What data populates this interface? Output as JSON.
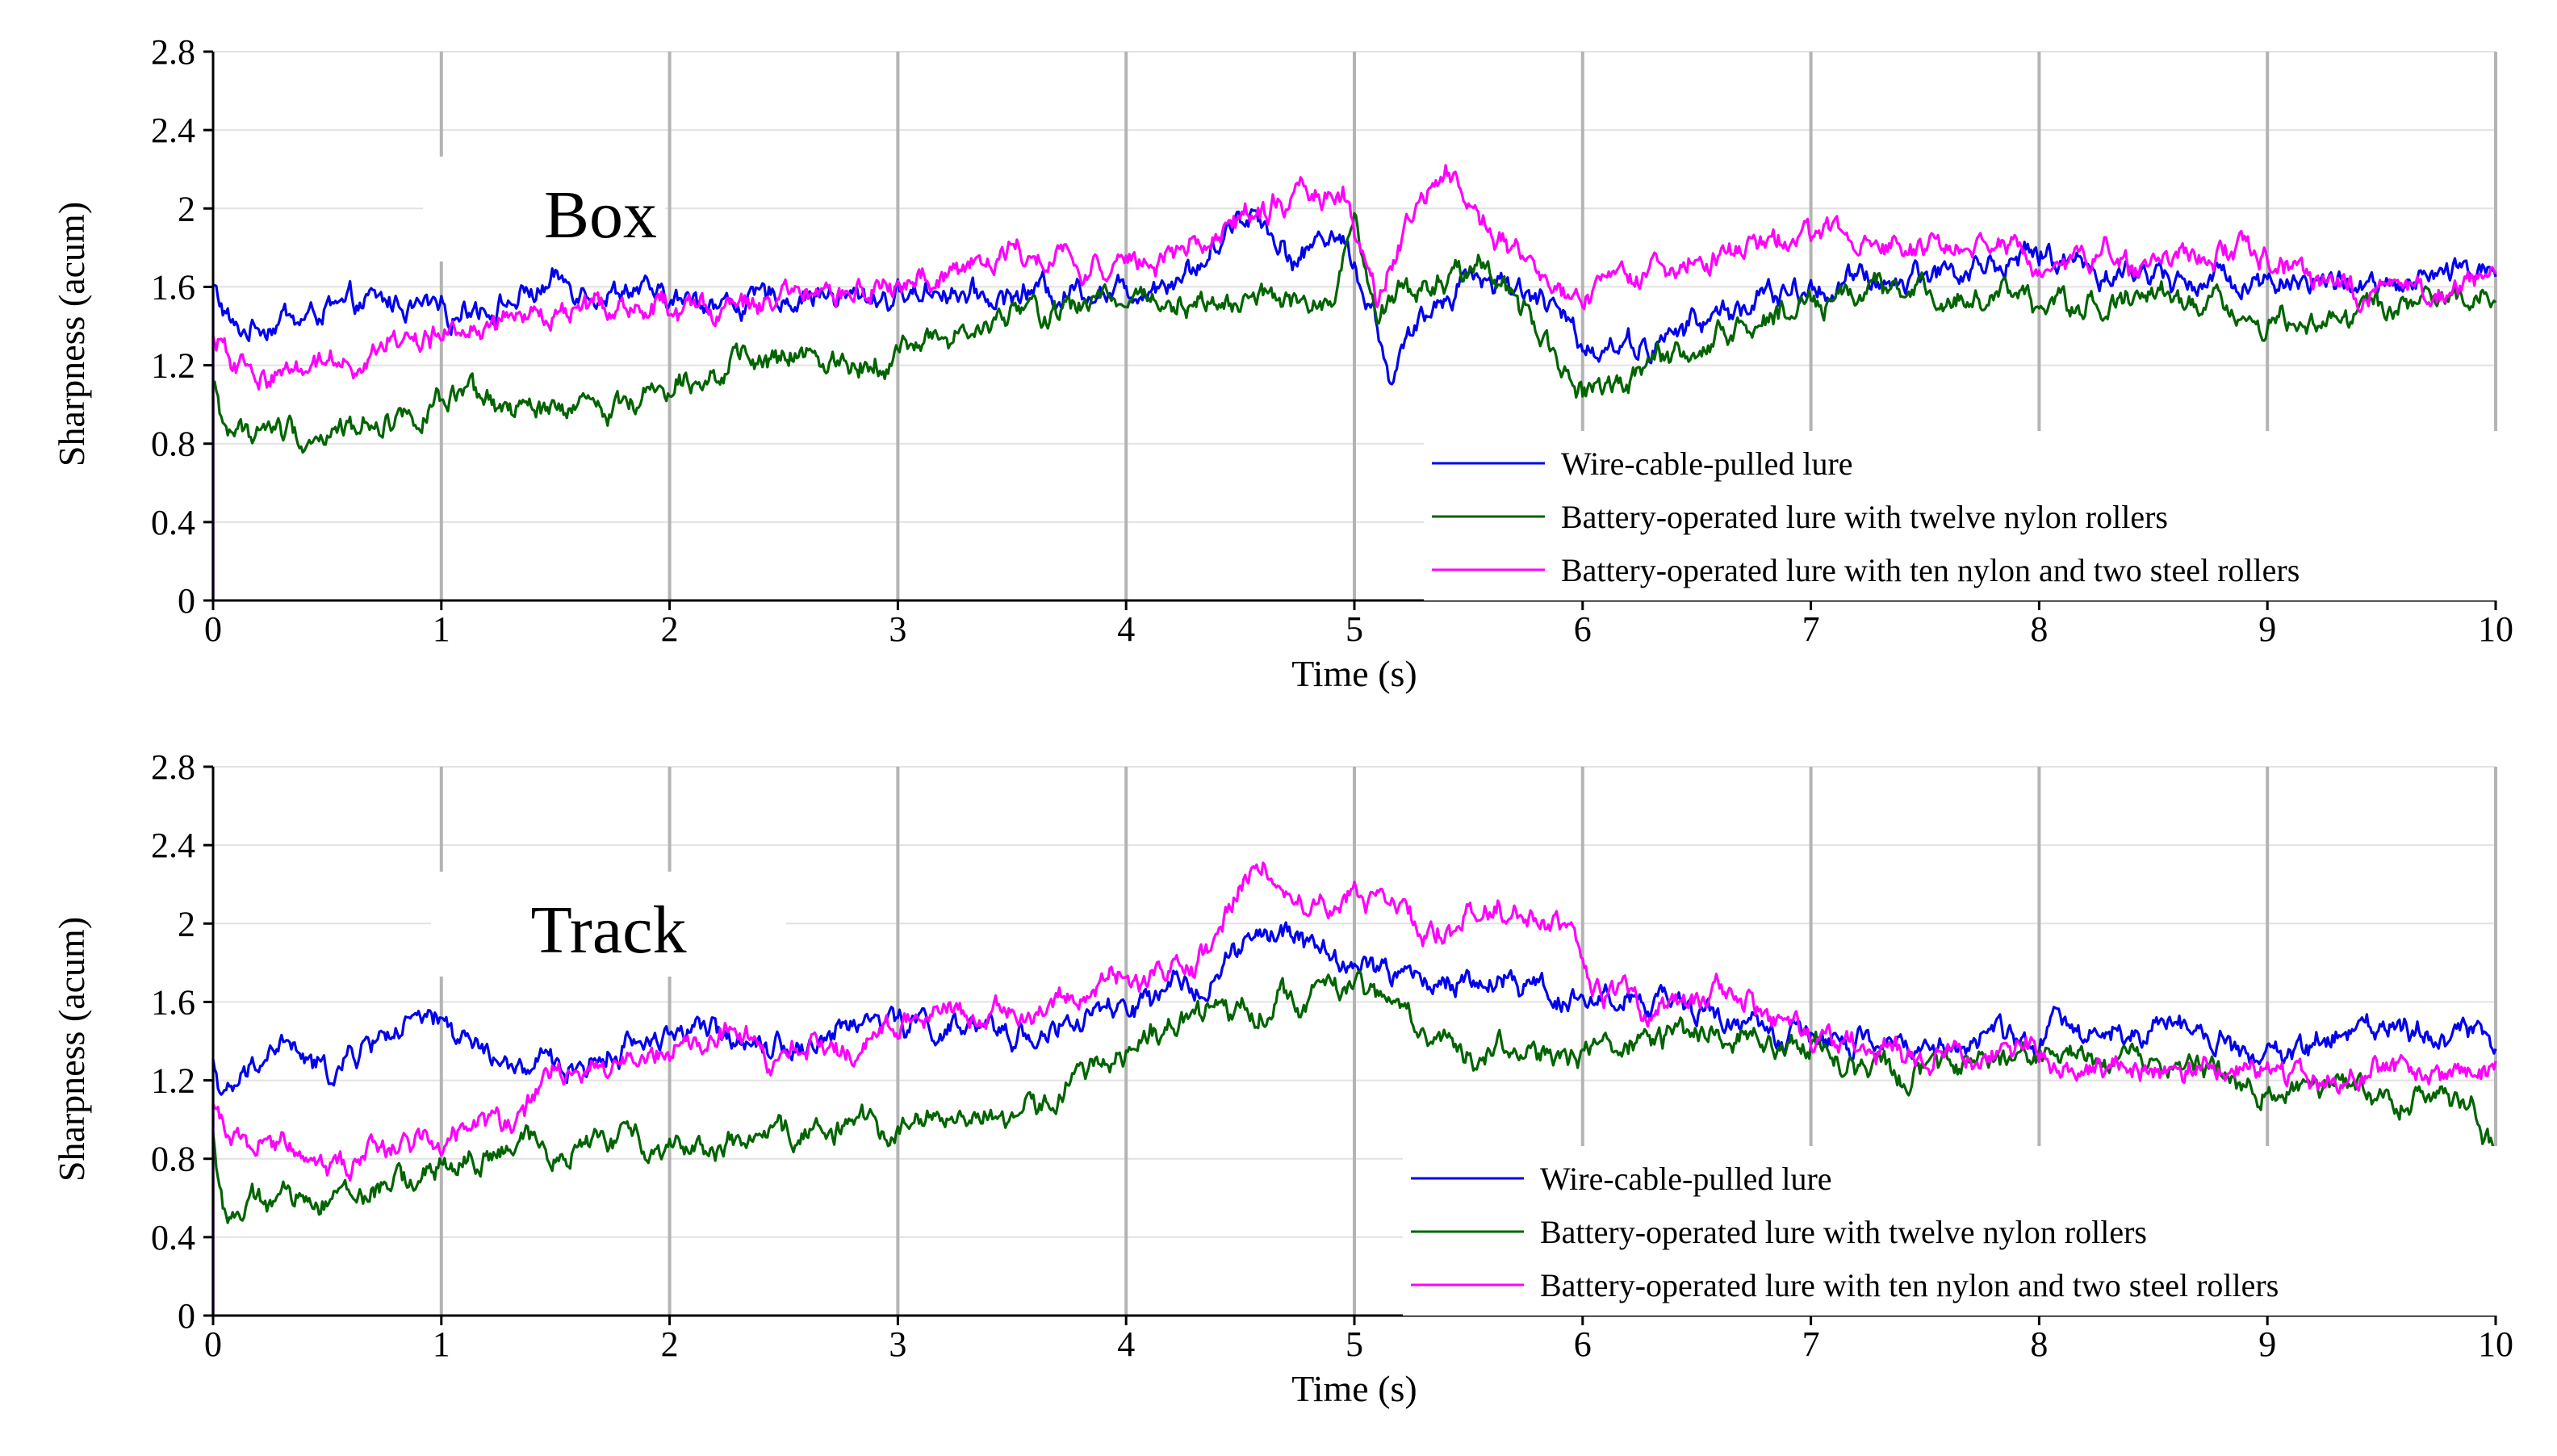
{
  "colors": {
    "wire": "#0000ee",
    "twelve": "#006400",
    "ten": "#ff00ff",
    "grid_major": "#b4b4b4",
    "grid_minor": "#e2e2e2",
    "axis": "#000000"
  },
  "chart_data": [
    {
      "type": "line",
      "panel_label": "Box",
      "xlabel": "Time (s)",
      "ylabel": "Sharpness (acum)",
      "xlim": [
        0,
        10
      ],
      "ylim": [
        0,
        2.8
      ],
      "xticks": [
        "0",
        "1",
        "2",
        "3",
        "4",
        "5",
        "6",
        "7",
        "8",
        "9",
        "10"
      ],
      "yticks": [
        "0",
        "0.4",
        "0.8",
        "1.2",
        "1.6",
        "2",
        "2.4",
        "2.8"
      ],
      "legend_position": "bottom-right",
      "series": [
        {
          "name": "Wire-cable-pulled lure",
          "color_key": "wire",
          "x": [
            0,
            0.1,
            0.5,
            1,
            1.5,
            2,
            2.5,
            3,
            3.5,
            4,
            4.3,
            4.55,
            4.75,
            4.9,
            5,
            5.1,
            5.15,
            5.3,
            5.5,
            5.7,
            6,
            6.3,
            6.6,
            7,
            7.5,
            8,
            8.5,
            9,
            9.5,
            10
          ],
          "y": [
            1.6,
            1.38,
            1.48,
            1.52,
            1.58,
            1.5,
            1.52,
            1.57,
            1.6,
            1.63,
            1.72,
            2.0,
            1.78,
            1.92,
            1.75,
            1.4,
            1.12,
            1.4,
            1.65,
            1.6,
            1.35,
            1.3,
            1.45,
            1.6,
            1.7,
            1.75,
            1.65,
            1.7,
            1.6,
            1.7
          ]
        },
        {
          "name": "Battery-operated lure with twelve nylon rollers",
          "color_key": "twelve",
          "x": [
            0,
            0.05,
            0.3,
            0.6,
            1,
            1.5,
            2,
            2.5,
            3,
            3.5,
            4,
            4.5,
            4.9,
            5,
            5.1,
            5.2,
            5.4,
            5.6,
            5.8,
            6,
            6.3,
            6.6,
            7,
            7.5,
            8,
            8.5,
            9,
            9.5,
            10
          ],
          "y": [
            1.1,
            0.9,
            0.84,
            0.92,
            0.98,
            0.95,
            1.1,
            1.2,
            1.3,
            1.45,
            1.55,
            1.5,
            1.45,
            1.9,
            1.4,
            1.5,
            1.6,
            1.68,
            1.45,
            1.05,
            1.2,
            1.35,
            1.55,
            1.58,
            1.5,
            1.55,
            1.45,
            1.45,
            1.55
          ]
        },
        {
          "name": "Battery-operated lure with ten nylon and two steel rollers",
          "color_key": "ten",
          "x": [
            0,
            0.05,
            0.2,
            0.5,
            1,
            1.5,
            2,
            2.5,
            3,
            3.5,
            4,
            4.5,
            4.75,
            4.95,
            5.1,
            5.25,
            5.4,
            5.55,
            5.7,
            6,
            6.3,
            6.6,
            7,
            7.5,
            8,
            8.5,
            9,
            9.5,
            10
          ],
          "y": [
            1.32,
            1.25,
            1.15,
            1.25,
            1.35,
            1.48,
            1.45,
            1.55,
            1.6,
            1.75,
            1.7,
            1.9,
            2.05,
            2.15,
            1.5,
            2.0,
            2.2,
            1.9,
            1.7,
            1.5,
            1.65,
            1.75,
            1.8,
            1.85,
            1.75,
            1.72,
            1.78,
            1.65,
            1.65
          ]
        }
      ]
    },
    {
      "type": "line",
      "panel_label": "Track",
      "xlabel": "Time (s)",
      "ylabel": "Sharpness (acum)",
      "xlim": [
        0,
        10
      ],
      "ylim": [
        0,
        2.8
      ],
      "xticks": [
        "0",
        "1",
        "2",
        "3",
        "4",
        "5",
        "6",
        "7",
        "8",
        "9",
        "10"
      ],
      "yticks": [
        "0",
        "0.4",
        "0.8",
        "1.2",
        "1.6",
        "2",
        "2.4",
        "2.8"
      ],
      "legend_position": "bottom-right",
      "series": [
        {
          "name": "Wire-cable-pulled lure",
          "color_key": "wire",
          "x": [
            0,
            0.05,
            0.3,
            0.5,
            0.8,
            1,
            1.3,
            1.6,
            2,
            2.5,
            3,
            3.5,
            4,
            4.3,
            4.6,
            5,
            5.5,
            6,
            6.5,
            7,
            7.5,
            8,
            8.5,
            9,
            9.5,
            10
          ],
          "y": [
            1.3,
            1.1,
            1.35,
            1.2,
            1.45,
            1.5,
            1.3,
            1.25,
            1.45,
            1.4,
            1.5,
            1.45,
            1.55,
            1.7,
            1.95,
            1.8,
            1.7,
            1.65,
            1.55,
            1.45,
            1.35,
            1.45,
            1.5,
            1.35,
            1.5,
            1.45
          ]
        },
        {
          "name": "Battery-operated lure with twelve nylon rollers",
          "color_key": "twelve",
          "x": [
            0,
            0.05,
            0.3,
            0.6,
            1,
            1.5,
            2,
            2.5,
            3,
            3.5,
            4,
            4.5,
            5,
            5.5,
            6,
            6.5,
            7,
            7.5,
            8,
            8.5,
            9,
            9.5,
            9.9,
            10
          ],
          "y": [
            0.9,
            0.55,
            0.6,
            0.7,
            0.8,
            0.85,
            0.9,
            0.95,
            0.98,
            1.0,
            1.4,
            1.6,
            1.7,
            1.4,
            1.35,
            1.42,
            1.45,
            1.2,
            1.28,
            1.3,
            1.15,
            1.1,
            1.15,
            0.85
          ]
        },
        {
          "name": "Battery-operated lure with ten nylon and two steel rollers",
          "color_key": "ten",
          "x": [
            0,
            0.05,
            0.3,
            0.6,
            1,
            1.5,
            2,
            2.3,
            2.5,
            3,
            3.5,
            4,
            4.3,
            4.6,
            4.8,
            5,
            5.3,
            5.6,
            5.9,
            6.05,
            6.3,
            6.6,
            7,
            7.5,
            8,
            8.5,
            9,
            9.5,
            10
          ],
          "y": [
            1.05,
            0.95,
            0.9,
            0.85,
            0.95,
            1.2,
            1.35,
            1.5,
            1.3,
            1.45,
            1.55,
            1.7,
            1.75,
            2.4,
            2.1,
            2.2,
            1.9,
            2.05,
            2.0,
            1.7,
            1.6,
            1.65,
            1.45,
            1.3,
            1.3,
            1.2,
            1.25,
            1.3,
            1.25
          ]
        }
      ]
    }
  ]
}
